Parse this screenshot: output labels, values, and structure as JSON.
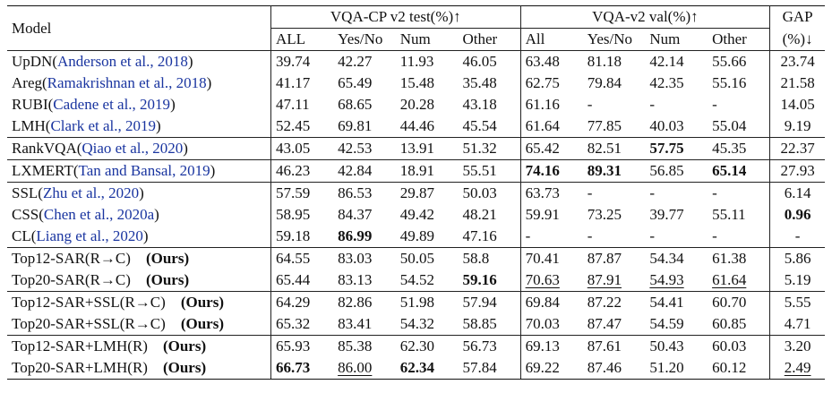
{
  "header": {
    "model": "Model",
    "group_cp": "VQA-CP v2 test(%)↑",
    "group_v2": "VQA-v2 val(%)↑",
    "gap_top": "GAP",
    "gap_bottom": "(%)↓",
    "cols_cp": [
      "ALL",
      "Yes/No",
      "Num",
      "Other"
    ],
    "cols_v2": [
      "All",
      "Yes/No",
      "Num",
      "Other"
    ]
  },
  "rows": [
    {
      "name": "UpDN",
      "cite": "Anderson et al., 2018",
      "ours": "",
      "values": [
        "39.74",
        "42.27",
        "11.93",
        "46.05",
        "63.48",
        "81.18",
        "42.14",
        "55.66",
        "23.74"
      ],
      "bold": [],
      "underline": []
    },
    {
      "name": "Areg",
      "cite": "Ramakrishnan et al., 2018",
      "ours": "",
      "values": [
        "41.17",
        "65.49",
        "15.48",
        "35.48",
        "62.75",
        "79.84",
        "42.35",
        "55.16",
        "21.58"
      ],
      "bold": [],
      "underline": []
    },
    {
      "name": "RUBI",
      "cite": "Cadene et al., 2019",
      "ours": "",
      "values": [
        "47.11",
        "68.65",
        "20.28",
        "43.18",
        "61.16",
        "-",
        "-",
        "-",
        "14.05"
      ],
      "bold": [],
      "underline": []
    },
    {
      "name": "LMH",
      "cite": "Clark et al., 2019",
      "ours": "",
      "values": [
        "52.45",
        "69.81",
        "44.46",
        "45.54",
        "61.64",
        "77.85",
        "40.03",
        "55.04",
        "9.19"
      ],
      "bold": [],
      "underline": []
    },
    {
      "name": "RankVQA",
      "cite": "Qiao et al., 2020",
      "ours": "",
      "values": [
        "43.05",
        "42.53",
        "13.91",
        "51.32",
        "65.42",
        "82.51",
        "57.75",
        "45.35",
        "22.37"
      ],
      "bold": [
        6
      ],
      "underline": []
    },
    {
      "name": "LXMERT",
      "cite": "Tan and Bansal, 2019",
      "ours": "",
      "values": [
        "46.23",
        "42.84",
        "18.91",
        "55.51",
        "74.16",
        "89.31",
        "56.85",
        "65.14",
        "27.93"
      ],
      "bold": [
        4,
        5,
        7
      ],
      "underline": []
    },
    {
      "name": "SSL",
      "cite": "Zhu et al., 2020",
      "ours": "",
      "values": [
        "57.59",
        "86.53",
        "29.87",
        "50.03",
        "63.73",
        "-",
        "-",
        "-",
        "6.14"
      ],
      "bold": [],
      "underline": []
    },
    {
      "name": "CSS",
      "cite": "Chen et al., 2020a",
      "ours": "",
      "values": [
        "58.95",
        "84.37",
        "49.42",
        "48.21",
        "59.91",
        "73.25",
        "39.77",
        "55.11",
        "0.96"
      ],
      "bold": [
        8
      ],
      "underline": []
    },
    {
      "name": "CL",
      "cite": "Liang et al., 2020",
      "ours": "",
      "values": [
        "59.18",
        "86.99",
        "49.89",
        "47.16",
        "-",
        "-",
        "-",
        "-",
        "-"
      ],
      "bold": [
        1
      ],
      "underline": []
    },
    {
      "name": "Top12-SAR(R→C)",
      "cite": "",
      "ours": "(Ours)",
      "values": [
        "64.55",
        "83.03",
        "50.05",
        "58.8",
        "70.41",
        "87.87",
        "54.34",
        "61.38",
        "5.86"
      ],
      "bold": [],
      "underline": []
    },
    {
      "name": "Top20-SAR(R→C)",
      "cite": "",
      "ours": "(Ours)",
      "values": [
        "65.44",
        "83.13",
        "54.52",
        "59.16",
        "70.63",
        "87.91",
        "54.93",
        "61.64",
        "5.19"
      ],
      "bold": [
        3
      ],
      "underline": [
        4,
        5,
        6,
        7
      ]
    },
    {
      "name": "Top12-SAR+SSL(R→C)",
      "cite": "",
      "ours": "(Ours)",
      "values": [
        "64.29",
        "82.86",
        "51.98",
        "57.94",
        "69.84",
        "87.22",
        "54.41",
        "60.70",
        "5.55"
      ],
      "bold": [],
      "underline": []
    },
    {
      "name": "Top20-SAR+SSL(R→C)",
      "cite": "",
      "ours": "(Ours)",
      "values": [
        "65.32",
        "83.41",
        "54.32",
        "58.85",
        "70.03",
        "87.47",
        "54.59",
        "60.85",
        "4.71"
      ],
      "bold": [],
      "underline": []
    },
    {
      "name": "Top12-SAR+LMH(R)",
      "cite": "",
      "ours": "(Ours)",
      "values": [
        "65.93",
        "85.38",
        "62.30",
        "56.73",
        "69.13",
        "87.61",
        "50.43",
        "60.03",
        "3.20"
      ],
      "bold": [],
      "underline": []
    },
    {
      "name": "Top20-SAR+LMH(R)",
      "cite": "",
      "ours": "(Ours)",
      "values": [
        "66.73",
        "86.00",
        "62.34",
        "57.84",
        "69.22",
        "87.46",
        "51.20",
        "60.12",
        "2.49"
      ],
      "bold": [
        0,
        2
      ],
      "underline": [
        1,
        8
      ]
    }
  ],
  "group_starts": [
    4,
    5,
    6,
    9,
    11,
    13
  ]
}
